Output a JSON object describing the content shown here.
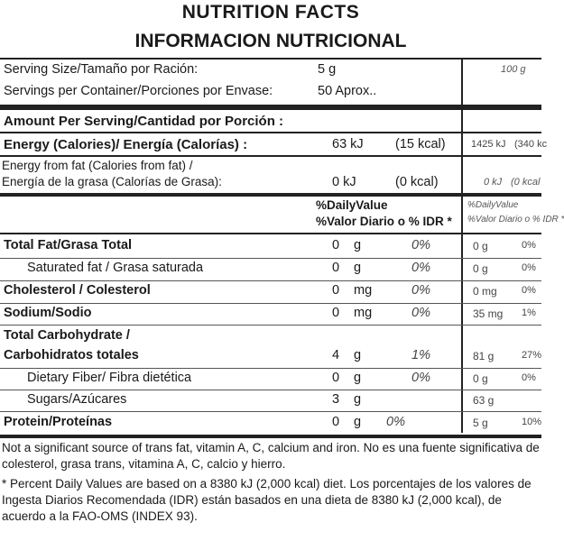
{
  "header": {
    "title_en": "NUTRITION FACTS",
    "title_es": "INFORMACION NUTRICIONAL"
  },
  "serving": {
    "size_label": "Serving Size/Tamaño por Ración:",
    "size_value": "5 g",
    "size_value_100": "100 g",
    "per_container_label": "Servings per Container/Porciones por Envase:",
    "per_container_value": "50 Aprox.."
  },
  "amount_header": "Amount Per Serving/Cantidad por Porción :",
  "energy": {
    "label": "Energy (Calories)/ Energía (Calorías) :",
    "kj": "63 kJ",
    "kcal": "(15 kcal)",
    "kj_100": "1425 kJ",
    "kcal_100": "(340 kc"
  },
  "energy_fat": {
    "label_line1": "Energy from fat (Calories from fat) /",
    "label_line2": "Energía de la grasa (Calorías de Grasa):",
    "kj": "0 kJ",
    "kcal": "(0 kcal)",
    "kj_100": "0 kJ",
    "kcal_100": "(0 kcal"
  },
  "dv_header": {
    "line1": "%DailyValue",
    "line2": "%Valor Diario o % IDR *",
    "line1_100": "%DailyValue",
    "line2_100": "%Valor Diario o % IDR *"
  },
  "nutrients": [
    {
      "label": "Total Fat/Grasa Total",
      "amount": "0",
      "unit": "g",
      "dv": "0%",
      "amount_100": "0 g",
      "dv_100": "0%"
    },
    {
      "label": "Saturated fat / Grasa saturada",
      "amount": "0",
      "unit": "g",
      "dv": "0%",
      "amount_100": "0 g",
      "dv_100": "0%"
    },
    {
      "label": "Cholesterol / Colesterol",
      "amount": "0",
      "unit": "mg",
      "dv": "0%",
      "amount_100": "0 mg",
      "dv_100": "0%"
    },
    {
      "label": "Sodium/Sodio",
      "amount": "0",
      "unit": "mg",
      "dv": "0%",
      "amount_100": "35 mg",
      "dv_100": "1%"
    },
    {
      "label_line1": "Total Carbohydrate /",
      "label": "Carbohidratos totales",
      "amount": "4",
      "unit": "g",
      "dv": "1%",
      "amount_100": "81 g",
      "dv_100": "27%"
    },
    {
      "label": "Dietary Fiber/ Fibra dietética",
      "amount": "0",
      "unit": "g",
      "dv": "0%",
      "amount_100": "0 g",
      "dv_100": "0%"
    },
    {
      "label": "Sugars/Azúcares",
      "amount": "3",
      "unit": "g",
      "dv": "",
      "amount_100": "63 g",
      "dv_100": ""
    },
    {
      "label": "Protein/Proteínas",
      "amount": "0",
      "unit": "g",
      "dv": "0%",
      "amount_100": "5 g",
      "dv_100": "10%"
    }
  ],
  "footer": {
    "note1": "Not a significant source of trans fat, vitamin A, C, calcium and iron. No es una fuente significativa de colesterol, grasa trans, vitamina A, C, calcio y hierro.",
    "note2": "* Percent Daily Values are based on a 8380 kJ (2,000 kcal) diet. Los porcentajes de los valores de Ingesta Diarios Recomendada (IDR) están basados en una dieta de 8380 kJ (2,000 kcal), de acuerdo a la FAO-OMS (INDEX 93)."
  }
}
